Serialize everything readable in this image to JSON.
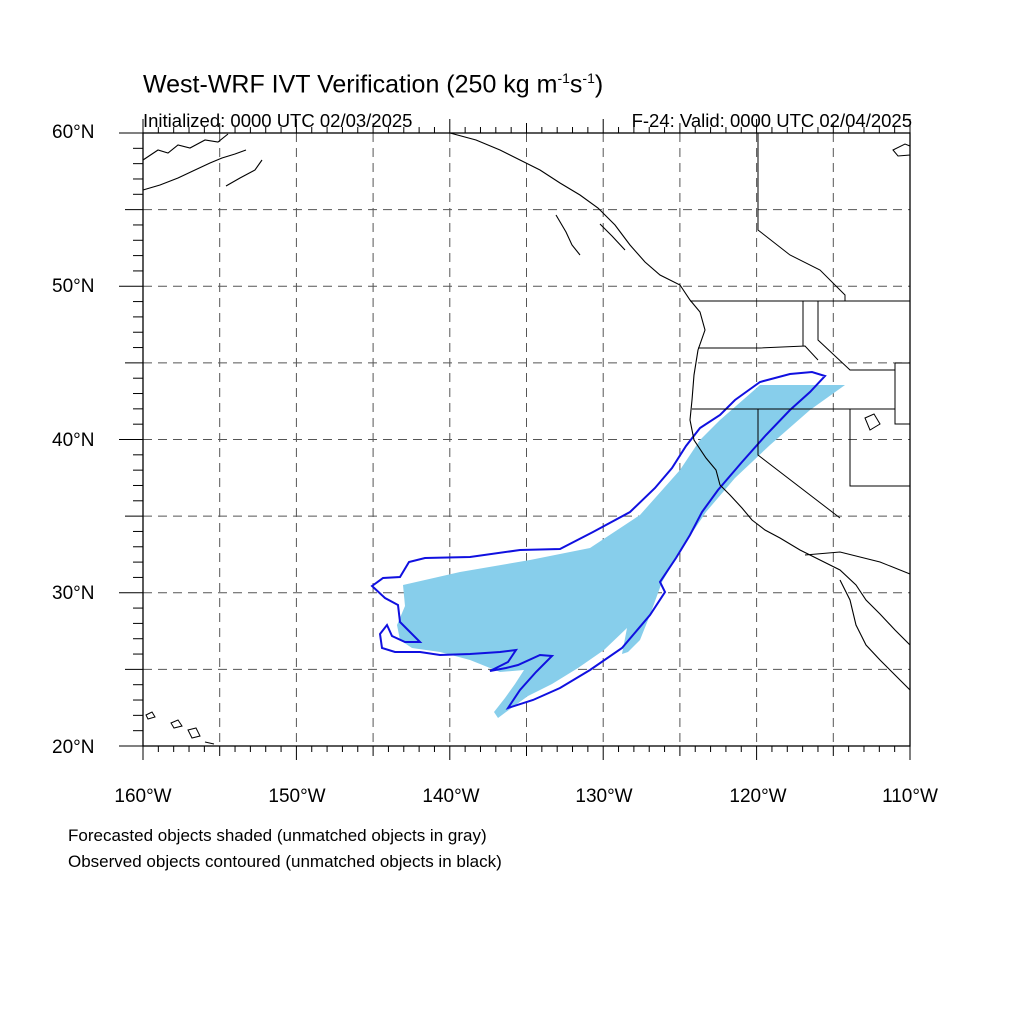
{
  "title": {
    "text": "West-WRF IVT Verification (250 kg m",
    "sup1": "-1",
    "mid": "s",
    "sup2": "-1",
    "end": ")"
  },
  "subtitle_left": "Initialized: 0000 UTC 02/03/2025",
  "subtitle_right": "F-24: Valid: 0000 UTC 02/04/2025",
  "lat_labels": [
    "60°N",
    "50°N",
    "40°N",
    "30°N",
    "20°N"
  ],
  "lon_labels": [
    "160°W",
    "150°W",
    "140°W",
    "130°W",
    "120°W",
    "110°W"
  ],
  "footnotes": [
    "Forecasted objects shaded (unmatched objects in gray)",
    "Observed objects contoured (unmatched objects in black)"
  ],
  "map": {
    "lon_range": [
      -160,
      -110
    ],
    "lat_range": [
      20,
      60
    ],
    "gridline_interval_deg": 5,
    "forecast_fill_color": "#87CEEB",
    "observed_contour_color": "#1010E0",
    "coastline_color": "#000000"
  }
}
